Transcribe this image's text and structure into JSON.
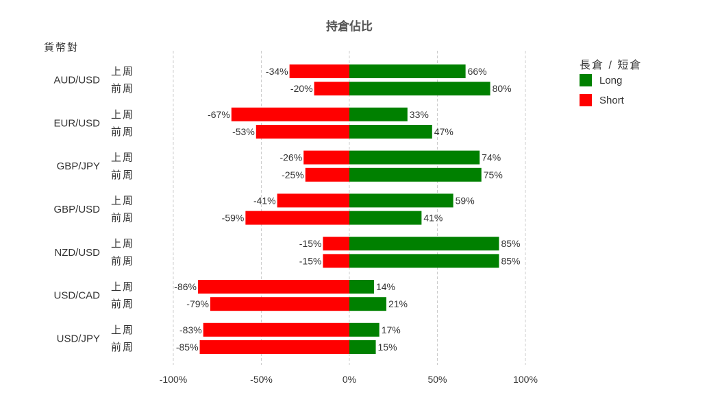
{
  "chart_data": {
    "type": "bar",
    "orientation": "horizontal",
    "stacked": "diverging",
    "title": "持倉佔比",
    "ylabel": "貨幣對",
    "legend": {
      "title": "長倉 / 短倉",
      "placement": "right",
      "entries": [
        {
          "name": "Long",
          "color": "#008000"
        },
        {
          "name": "Short",
          "color": "#ff0000"
        }
      ]
    },
    "xlim": [
      -100,
      100
    ],
    "xticks": [
      -100,
      -50,
      0,
      50,
      100
    ],
    "xtick_labels": [
      "-100%",
      "-50%",
      "0%",
      "50%",
      "100%"
    ],
    "grid": true,
    "groups": [
      {
        "pair": "AUD/USD",
        "rows": [
          {
            "week": "上周",
            "short": -34,
            "long": 66,
            "short_label": "-34%",
            "long_label": "66%"
          },
          {
            "week": "前周",
            "short": -20,
            "long": 80,
            "short_label": "-20%",
            "long_label": "80%"
          }
        ]
      },
      {
        "pair": "EUR/USD",
        "rows": [
          {
            "week": "上周",
            "short": -67,
            "long": 33,
            "short_label": "-67%",
            "long_label": "33%"
          },
          {
            "week": "前周",
            "short": -53,
            "long": 47,
            "short_label": "-53%",
            "long_label": "47%"
          }
        ]
      },
      {
        "pair": "GBP/JPY",
        "rows": [
          {
            "week": "上周",
            "short": -26,
            "long": 74,
            "short_label": "-26%",
            "long_label": "74%"
          },
          {
            "week": "前周",
            "short": -25,
            "long": 75,
            "short_label": "-25%",
            "long_label": "75%"
          }
        ]
      },
      {
        "pair": "GBP/USD",
        "rows": [
          {
            "week": "上周",
            "short": -41,
            "long": 59,
            "short_label": "-41%",
            "long_label": "59%"
          },
          {
            "week": "前周",
            "short": -59,
            "long": 41,
            "short_label": "-59%",
            "long_label": "41%"
          }
        ]
      },
      {
        "pair": "NZD/USD",
        "rows": [
          {
            "week": "上周",
            "short": -15,
            "long": 85,
            "short_label": "-15%",
            "long_label": "85%"
          },
          {
            "week": "前周",
            "short": -15,
            "long": 85,
            "short_label": "-15%",
            "long_label": "85%"
          }
        ]
      },
      {
        "pair": "USD/CAD",
        "rows": [
          {
            "week": "上周",
            "short": -86,
            "long": 14,
            "short_label": "-86%",
            "long_label": "14%"
          },
          {
            "week": "前周",
            "short": -79,
            "long": 21,
            "short_label": "-79%",
            "long_label": "21%"
          }
        ]
      },
      {
        "pair": "USD/JPY",
        "rows": [
          {
            "week": "上周",
            "short": -83,
            "long": 17,
            "short_label": "-83%",
            "long_label": "17%"
          },
          {
            "week": "前周",
            "short": -85,
            "long": 15,
            "short_label": "-85%",
            "long_label": "15%"
          }
        ]
      }
    ]
  }
}
